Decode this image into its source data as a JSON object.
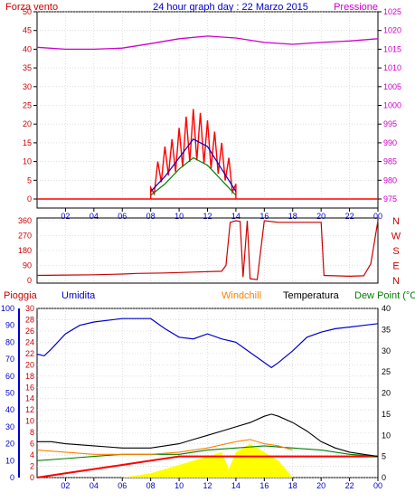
{
  "header": {
    "left_label": "Forza vento",
    "title": "24 hour graph day : 22 Marzo 2015",
    "right_label": "Pressione"
  },
  "wind_panel_labels": {
    "left": "Pioggia",
    "humidity": "Umidita",
    "windchill": "Windchill",
    "temperature": "Temperatura",
    "dewpoint": "Dew Point (°C"
  },
  "colors": {
    "wind": "#ff0000",
    "gust_blue": "#0000cc",
    "wind_green": "#008000",
    "pressure": "#cc00cc",
    "direction": "#cc0000",
    "humidity": "#0000cc",
    "temperature": "#000000",
    "windchill": "#ff8000",
    "dewpoint": "#008000",
    "rain_fill": "#ffff00",
    "rain_line": "#ff0000",
    "title": "#0000cc"
  },
  "chart_data": [
    {
      "type": "line",
      "name": "wind-pressure",
      "x_ticks": [
        "02",
        "04",
        "06",
        "08",
        "10",
        "12",
        "14",
        "16",
        "18",
        "20",
        "22",
        "00"
      ],
      "ylim_left": [
        0,
        50
      ],
      "y_ticks_left": [
        "0",
        "5",
        "10",
        "15",
        "20",
        "25",
        "30",
        "35",
        "40",
        "45",
        "50"
      ],
      "ylim_right": [
        975,
        1025
      ],
      "y_ticks_right": [
        "975",
        "980",
        "985",
        "990",
        "995",
        "1000",
        "1005",
        "1010",
        "1015",
        "1020",
        "1025"
      ],
      "pressure": {
        "x": [
          0,
          2,
          4,
          6,
          8,
          10,
          12,
          14,
          16,
          18,
          20,
          22,
          24
        ],
        "values": [
          1015.5,
          1015,
          1015,
          1015.3,
          1016.5,
          1017.8,
          1018.5,
          1018,
          1016.8,
          1016.3,
          1016.8,
          1017.2,
          1017.8
        ]
      },
      "wind_gust_envelope": {
        "x": [
          8,
          8.5,
          9,
          9.5,
          10,
          10.5,
          11,
          11.5,
          12,
          12.5,
          13,
          13.5,
          14
        ],
        "values": [
          3,
          10,
          14,
          16,
          19,
          22,
          24,
          23,
          21,
          18,
          15,
          11,
          4
        ]
      },
      "wind_avg_blue": {
        "x": [
          8,
          9,
          10,
          11,
          12,
          13,
          14
        ],
        "values": [
          2,
          6,
          11,
          16,
          14,
          8,
          2
        ]
      },
      "wind_green": {
        "x": [
          8,
          9,
          10,
          11,
          12,
          13,
          14
        ],
        "values": [
          1,
          4,
          8,
          11,
          9,
          5,
          1
        ]
      }
    },
    {
      "type": "line",
      "name": "wind-direction",
      "x_ticks": [
        "02",
        "04",
        "06",
        "08",
        "10",
        "12",
        "14",
        "16",
        "18",
        "20",
        "22",
        "00"
      ],
      "ylim": [
        0,
        360
      ],
      "y_ticks_left": [
        "0",
        "90",
        "180",
        "270",
        "360"
      ],
      "y_ticks_right": [
        "N",
        "E",
        "S",
        "W",
        "N"
      ],
      "direction": {
        "x": [
          0,
          2,
          4,
          6,
          7,
          9,
          11,
          13,
          13.3,
          13.6,
          14,
          14.3,
          14.5,
          14.8,
          15,
          15.5,
          16,
          17,
          18,
          19,
          20,
          20.2,
          22,
          23,
          23.5,
          24
        ],
        "values": [
          30,
          32,
          34,
          38,
          42,
          45,
          50,
          55,
          90,
          350,
          360,
          355,
          20,
          360,
          10,
          5,
          360,
          350,
          350,
          350,
          350,
          30,
          25,
          28,
          100,
          360
        ]
      }
    },
    {
      "type": "line",
      "name": "rain-humidity-temperature",
      "x_ticks": [
        "02",
        "04",
        "06",
        "08",
        "10",
        "12",
        "14",
        "16",
        "18",
        "20",
        "22",
        "00"
      ],
      "y_ticks_rain": [
        "0",
        "2",
        "4",
        "6",
        "8",
        "10",
        "12",
        "14",
        "16",
        "18",
        "20",
        "22",
        "24",
        "26",
        "28",
        "30"
      ],
      "ylim_rain": [
        0,
        30
      ],
      "y_ticks_humidity": [
        "0",
        "10",
        "20",
        "30",
        "40",
        "50",
        "60",
        "70",
        "80",
        "90",
        "100"
      ],
      "ylim_humidity": [
        0,
        100
      ],
      "y_ticks_temperature": [
        "0",
        "5",
        "10",
        "15",
        "20",
        "25",
        "30",
        "35",
        "40"
      ],
      "ylim_temperature": [
        0,
        40
      ],
      "humidity": {
        "x": [
          0,
          0.5,
          1,
          2,
          3,
          4,
          6,
          8,
          9,
          10,
          11,
          12,
          13,
          14,
          15,
          16,
          16.5,
          17,
          18,
          19,
          20,
          21,
          22,
          23,
          24
        ],
        "values": [
          73,
          72,
          76,
          85,
          90,
          92,
          94,
          94,
          88,
          83,
          82,
          85,
          82,
          80,
          74,
          68,
          65,
          68,
          75,
          83,
          86,
          88,
          89,
          90,
          91
        ]
      },
      "temperature": {
        "x": [
          0,
          1,
          2,
          4,
          6,
          8,
          9,
          10,
          11,
          12,
          13,
          14,
          15,
          16,
          16.5,
          17,
          18,
          19,
          20,
          21,
          22,
          23,
          24
        ],
        "values": [
          8.5,
          8.5,
          8,
          7.5,
          7,
          7,
          7.5,
          8,
          9,
          10,
          11,
          12,
          13,
          14.5,
          15,
          14.5,
          13,
          11,
          8.5,
          7,
          6,
          5.5,
          5
        ]
      },
      "windchill": {
        "x": [
          0,
          2,
          4,
          6,
          8,
          10,
          12,
          14,
          15,
          16,
          17,
          18
        ],
        "values": [
          6.5,
          6,
          5.5,
          5.5,
          5.5,
          6,
          7,
          8.5,
          9,
          8,
          7.5,
          6.5
        ]
      },
      "dewpoint": {
        "x": [
          0,
          2,
          4,
          6,
          8,
          10,
          12,
          14,
          16,
          18,
          20,
          22,
          24
        ],
        "values": [
          4,
          4.5,
          5,
          5.5,
          5.5,
          5.5,
          6.5,
          7,
          7.5,
          7,
          6.5,
          5.5,
          5
        ]
      },
      "rain_total": {
        "x": [
          0,
          2,
          4,
          6,
          8,
          10,
          24
        ],
        "values": [
          0,
          1,
          2,
          3,
          4,
          5,
          5
        ]
      },
      "rain_rate_fill": {
        "x": [
          0,
          6,
          8,
          9,
          10,
          11,
          12,
          13,
          13.5,
          14,
          14.5,
          15,
          15.5,
          16,
          16.5,
          17,
          17.5,
          18,
          24
        ],
        "values": [
          0,
          0,
          1,
          2,
          3,
          4,
          5,
          6,
          2,
          6,
          7,
          8,
          7,
          6,
          5,
          4,
          2,
          0,
          0
        ]
      }
    }
  ]
}
